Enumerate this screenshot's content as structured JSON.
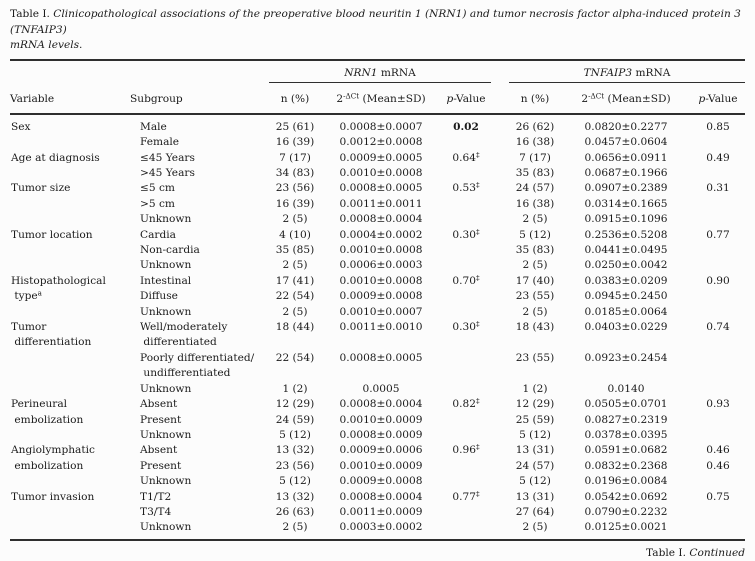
{
  "page": {
    "title_prefix": "Table I. ",
    "title_italic": "Clinicopathological associations of the preoperative blood neuritin 1 (NRN1) and tumor necrosis factor alpha-induced protein 3 (TNFAIP3)\nmRNA levels.",
    "footer_prefix": "Table I. ",
    "footer_italic": "Continued"
  },
  "table": {
    "group_headers": [
      {
        "gene": "NRN1",
        "rest": " mRNA"
      },
      {
        "gene": "TNFAIP3",
        "rest": " mRNA"
      }
    ],
    "columns": {
      "variable": "Variable",
      "subgroup": "Subgroup",
      "n": "n (%)",
      "mean_base": "2",
      "mean_sup": "-ΔCt",
      "mean_rest": " (Mean±SD)",
      "p_italic": "p",
      "p_rest": "-Value"
    },
    "rows": [
      {
        "variable": "Sex",
        "subgroup": "Male",
        "n1": "25 (61)",
        "m1": "0.0008±0.0007",
        "p1": "0.02",
        "p1_bold": true,
        "n2": "26 (62)",
        "m2": "0.0820±0.2277",
        "p2": "0.85"
      },
      {
        "variable": "",
        "subgroup": "Female",
        "n1": "16 (39)",
        "m1": "0.0012±0.0008",
        "p1": "",
        "n2": "16 (38)",
        "m2": "0.0457±0.0604",
        "p2": ""
      },
      {
        "variable": "Age at diagnosis",
        "subgroup": "≤45 Years",
        "n1": "7 (17)",
        "m1": "0.0009±0.0005",
        "p1": "0.64",
        "p1_sup": "‡",
        "n2": "7 (17)",
        "m2": "0.0656±0.0911",
        "p2": "0.49"
      },
      {
        "variable": "",
        "subgroup": ">45 Years",
        "n1": "34 (83)",
        "m1": "0.0010±0.0008",
        "p1": "",
        "n2": "35 (83)",
        "m2": "0.0687±0.1966",
        "p2": ""
      },
      {
        "variable": "Tumor size",
        "subgroup": "≤5 cm",
        "n1": "23 (56)",
        "m1": "0.0008±0.0005",
        "p1": "0.53",
        "p1_sup": "‡",
        "n2": "24 (57)",
        "m2": "0.0907±0.2389",
        "p2": "0.31"
      },
      {
        "variable": "",
        "subgroup": ">5 cm",
        "n1": "16 (39)",
        "m1": "0.0011±0.0011",
        "p1": "",
        "n2": "16 (38)",
        "m2": "0.0314±0.1665",
        "p2": ""
      },
      {
        "variable": "",
        "subgroup": "Unknown",
        "n1": "2 (5)",
        "m1": "0.0008±0.0004",
        "p1": "",
        "n2": "2 (5)",
        "m2": "0.0915±0.1096",
        "p2": ""
      },
      {
        "variable": "Tumor location",
        "subgroup": "Cardia",
        "n1": "4 (10)",
        "m1": "0.0004±0.0002",
        "p1": "0.30",
        "p1_sup": "‡",
        "n2": "5 (12)",
        "m2": "0.2536±0.5208",
        "p2": "0.77"
      },
      {
        "variable": "",
        "subgroup": "Non-cardia",
        "n1": "35 (85)",
        "m1": "0.0010±0.0008",
        "p1": "",
        "n2": "35 (83)",
        "m2": "0.0441±0.0495",
        "p2": ""
      },
      {
        "variable": "",
        "subgroup": "Unknown",
        "n1": "2 (5)",
        "m1": "0.0006±0.0003",
        "p1": "",
        "n2": "2 (5)",
        "m2": "0.0250±0.0042",
        "p2": ""
      },
      {
        "variable": "Histopathological",
        "subgroup": "Intestinal",
        "n1": "17 (41)",
        "m1": "0.0010±0.0008",
        "p1": "0.70",
        "p1_sup": "‡",
        "n2": "17 (40)",
        "m2": "0.0383±0.0209",
        "p2": "0.90"
      },
      {
        "variable": " type",
        "variable_sup": "a",
        "subgroup": "Diffuse",
        "n1": "22 (54)",
        "m1": "0.0009±0.0008",
        "p1": "",
        "n2": "23 (55)",
        "m2": "0.0945±0.2450",
        "p2": ""
      },
      {
        "variable": "",
        "subgroup": "Unknown",
        "n1": "2 (5)",
        "m1": "0.0010±0.0007",
        "p1": "",
        "n2": "2 (5)",
        "m2": "0.0185±0.0064",
        "p2": ""
      },
      {
        "variable": "Tumor\n differentiation",
        "subgroup": "Well/moderately\n differentiated",
        "n1": "18 (44)",
        "m1": "0.0011±0.0010",
        "p1": "0.30",
        "p1_sup": "‡",
        "n2": "18 (43)",
        "m2": "0.0403±0.0229",
        "p2": "0.74"
      },
      {
        "variable": "",
        "subgroup": "Poorly differentiated/\n undifferentiated",
        "n1": "22 (54)",
        "m1": "0.0008±0.0005",
        "p1": "",
        "n2": "23 (55)",
        "m2": "0.0923±0.2454",
        "p2": ""
      },
      {
        "variable": "",
        "subgroup": "Unknown",
        "n1": "1 (2)",
        "m1": "0.0005",
        "p1": "",
        "n2": "1 (2)",
        "m2": "0.0140",
        "p2": ""
      },
      {
        "variable": "Perineural",
        "subgroup": "Absent",
        "n1": "12 (29)",
        "m1": "0.0008±0.0004",
        "p1": "0.82",
        "p1_sup": "‡",
        "n2": "12 (29)",
        "m2": "0.0505±0.0701",
        "p2": "0.93"
      },
      {
        "variable": " embolization",
        "subgroup": "Present",
        "n1": "24 (59)",
        "m1": "0.0010±0.0009",
        "p1": "",
        "n2": "25 (59)",
        "m2": "0.0827±0.2319",
        "p2": ""
      },
      {
        "variable": "",
        "subgroup": "Unknown",
        "n1": "5 (12)",
        "m1": "0.0008±0.0009",
        "p1": "",
        "n2": "5 (12)",
        "m2": "0.0378±0.0395",
        "p2": ""
      },
      {
        "variable": "Angiolymphatic",
        "subgroup": "Absent",
        "n1": "13 (32)",
        "m1": "0.0009±0.0006",
        "p1": "0.96",
        "p1_sup": "‡",
        "n2": "13 (31)",
        "m2": "0.0591±0.0682",
        "p2": "0.46"
      },
      {
        "variable": " embolization",
        "subgroup": "Present",
        "n1": "23 (56)",
        "m1": "0.0010±0.0009",
        "p1": "",
        "n2": "24 (57)",
        "m2": "0.0832±0.2368",
        "p2": "0.46"
      },
      {
        "variable": "",
        "subgroup": "Unknown",
        "n1": "5 (12)",
        "m1": "0.0009±0.0008",
        "p1": "",
        "n2": "5 (12)",
        "m2": "0.0196±0.0084",
        "p2": ""
      },
      {
        "variable": "Tumor invasion",
        "subgroup": "T1/T2",
        "n1": "13 (32)",
        "m1": "0.0008±0.0004",
        "p1": "0.77",
        "p1_sup": "‡",
        "n2": "13 (31)",
        "m2": "0.0542±0.0692",
        "p2": "0.75"
      },
      {
        "variable": "",
        "subgroup": "T3/T4",
        "n1": "26 (63)",
        "m1": "0.0011±0.0009",
        "p1": "",
        "n2": "27 (64)",
        "m2": "0.0790±0.2232",
        "p2": ""
      },
      {
        "variable": "",
        "subgroup": "Unknown",
        "n1": "2 (5)",
        "m1": "0.0003±0.0002",
        "p1": "",
        "n2": "2 (5)",
        "m2": "0.0125±0.0021",
        "p2": ""
      }
    ]
  }
}
